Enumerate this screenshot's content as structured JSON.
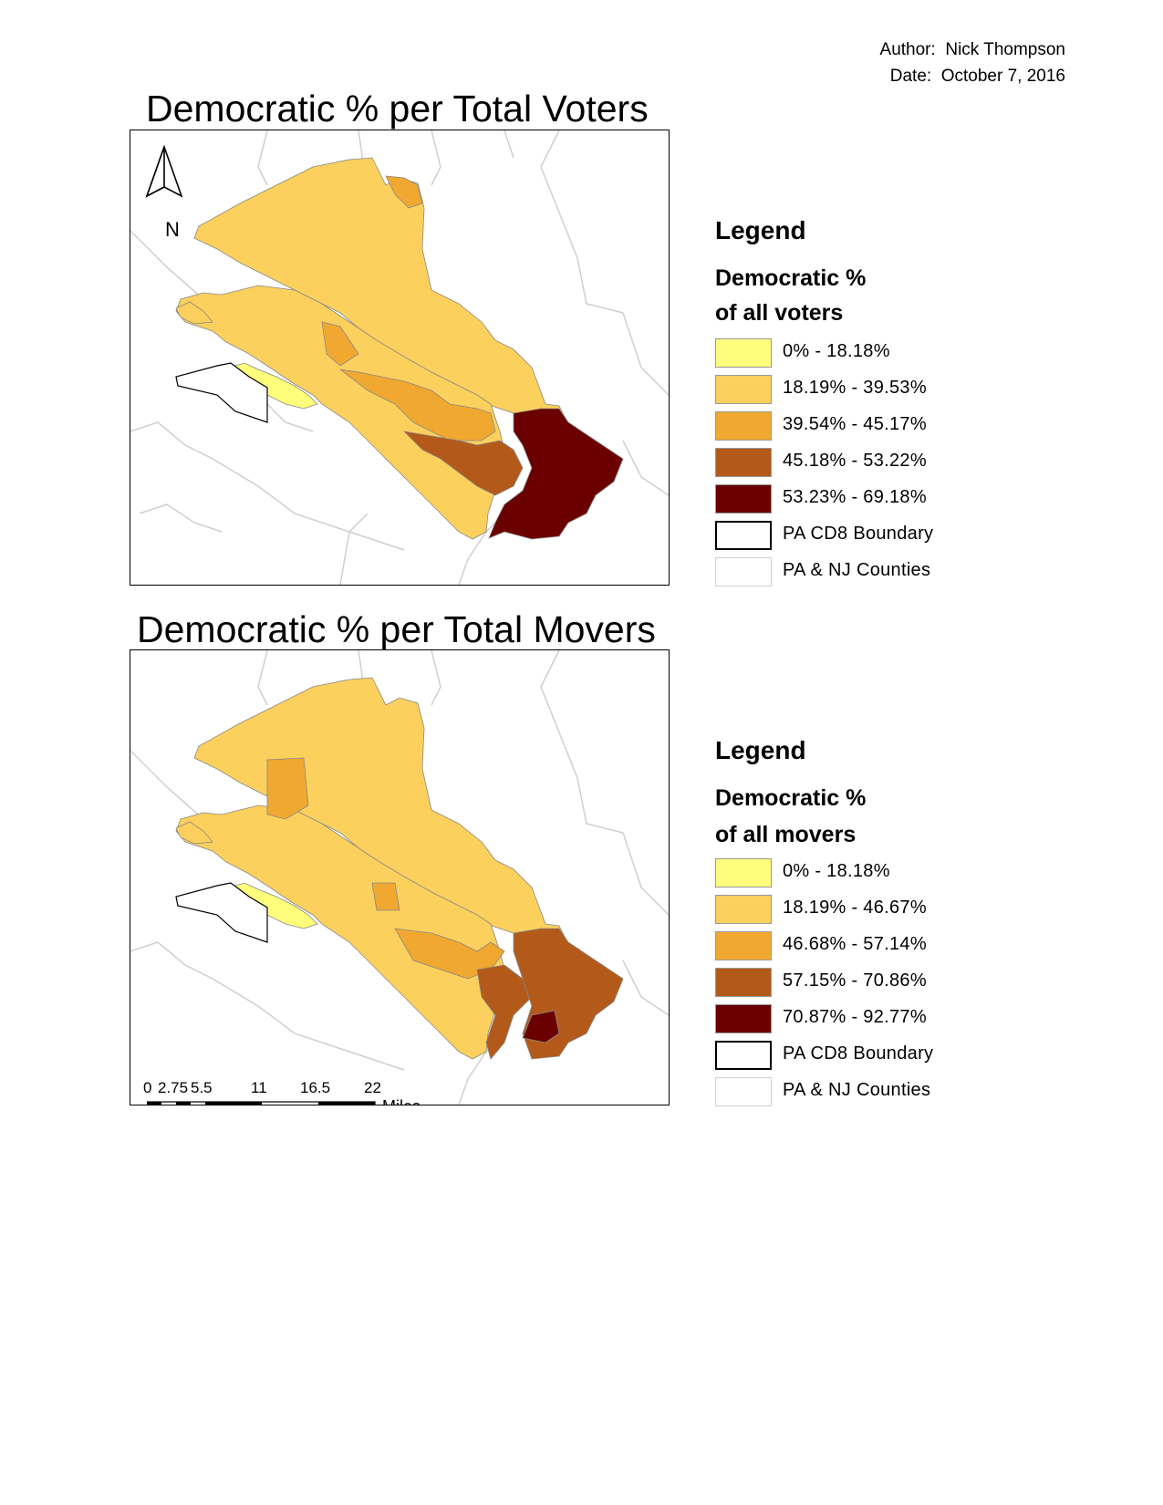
{
  "author": "Author:  Nick Thompson",
  "date": "Date:  October 7, 2016",
  "colors": {
    "class1": "#fefe7c",
    "class2": "#fcd05c",
    "class3": "#f0a830",
    "class4": "#b35a1a",
    "class5": "#6b0000",
    "county_lines": "#cfcfcf",
    "boundary": "#000000"
  },
  "maps": [
    {
      "title": "Democratic % per Total Voters",
      "legend": {
        "heading": "Legend",
        "field_line1": "Democratic %",
        "field_line2": "of all voters",
        "classes": [
          {
            "label": "0% - 18.18%",
            "color": "#fefe7c"
          },
          {
            "label": "18.19% - 39.53%",
            "color": "#fcd05c"
          },
          {
            "label": "39.54% - 45.17%",
            "color": "#f0a830"
          },
          {
            "label": "45.18% - 53.22%",
            "color": "#b35a1a"
          },
          {
            "label": "53.23% - 69.18%",
            "color": "#6b0000"
          }
        ],
        "boundary_label": "PA CD8 Boundary",
        "counties_label": "PA & NJ Counties"
      }
    },
    {
      "title": "Democratic % per Total Movers",
      "legend": {
        "heading": "Legend",
        "field_line1": "Democratic %",
        "field_line2": "of all movers",
        "classes": [
          {
            "label": "0% - 18.18%",
            "color": "#fefe7c"
          },
          {
            "label": "18.19% - 46.67%",
            "color": "#fcd05c"
          },
          {
            "label": "46.68% - 57.14%",
            "color": "#f0a830"
          },
          {
            "label": "57.15% - 70.86%",
            "color": "#b35a1a"
          },
          {
            "label": "70.87% - 92.77%",
            "color": "#6b0000"
          }
        ],
        "boundary_label": "PA CD8 Boundary",
        "counties_label": "PA & NJ Counties"
      }
    }
  ],
  "north_arrow": {
    "label": "N"
  },
  "scale_bar": {
    "ticks": [
      "0",
      "2.75",
      "5.5",
      "11",
      "16.5",
      "22"
    ],
    "units": "Miles"
  }
}
